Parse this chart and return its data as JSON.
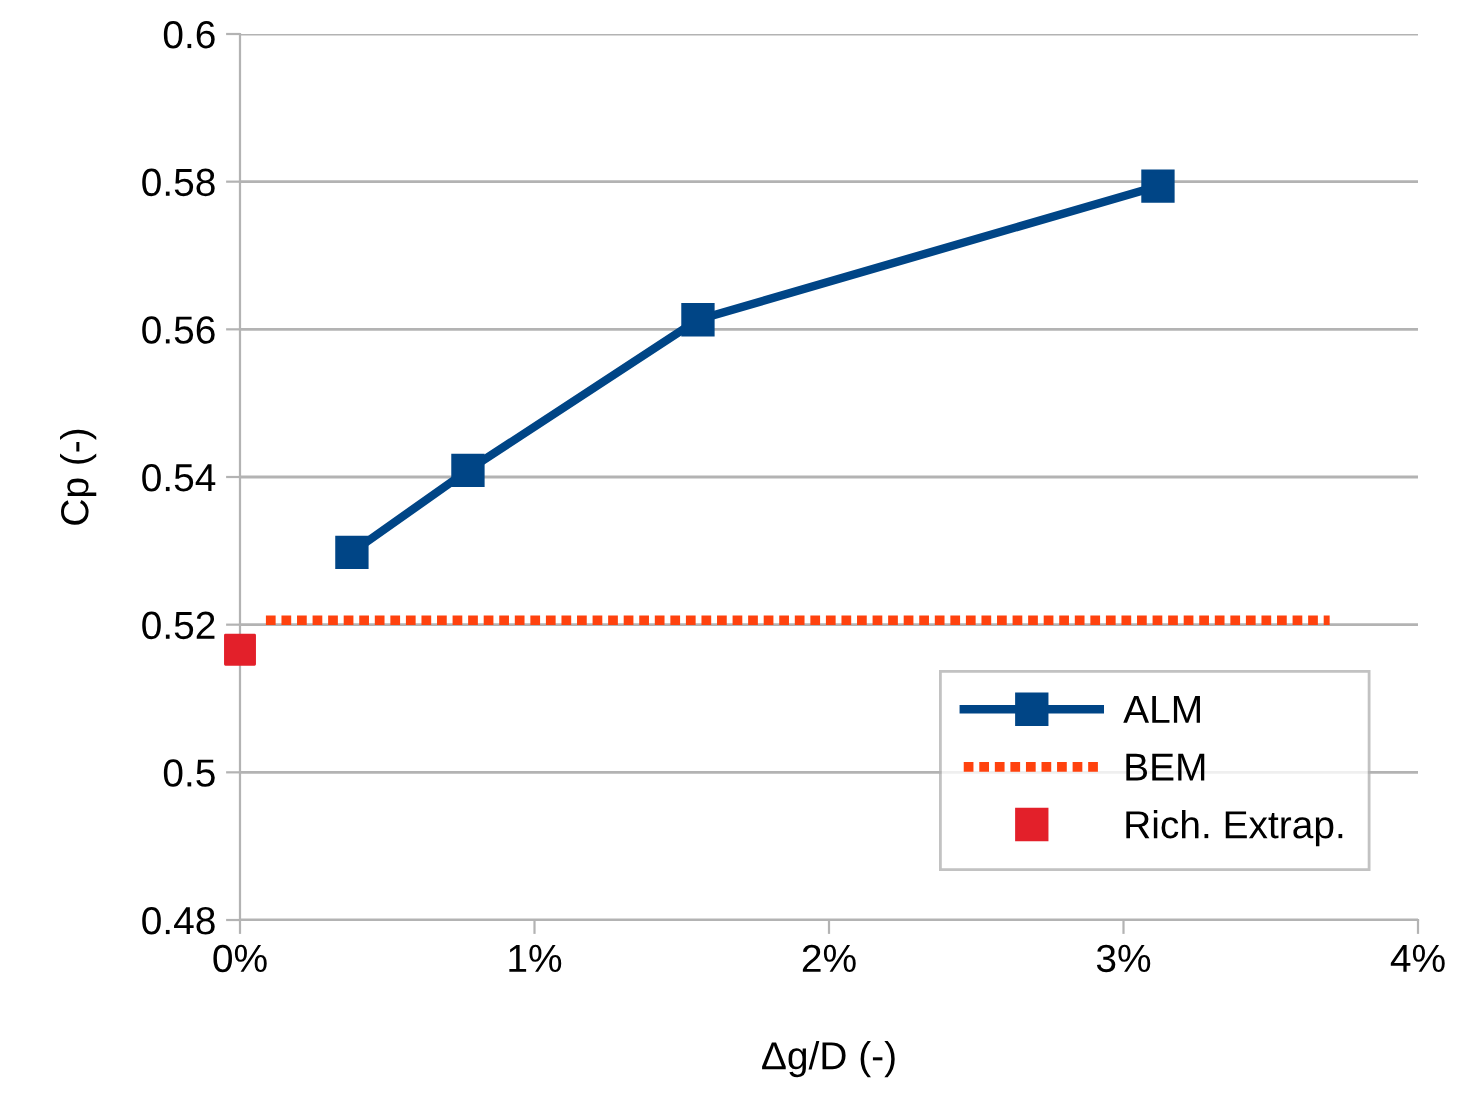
{
  "chart_data": {
    "type": "line",
    "xlabel": "Δg/D (-)",
    "ylabel": "Cp (-)",
    "xlim": [
      0,
      4
    ],
    "xticks": [
      {
        "value": 0,
        "label": "0%"
      },
      {
        "value": 1,
        "label": "1%"
      },
      {
        "value": 2,
        "label": "2%"
      },
      {
        "value": 3,
        "label": "3%"
      },
      {
        "value": 4,
        "label": "4%"
      }
    ],
    "ylim": [
      0.48,
      0.6
    ],
    "yticks": [
      {
        "value": 0.48,
        "label": "0.48"
      },
      {
        "value": 0.5,
        "label": "0.5"
      },
      {
        "value": 0.52,
        "label": "0.52"
      },
      {
        "value": 0.54,
        "label": "0.54"
      },
      {
        "value": 0.56,
        "label": "0.56"
      },
      {
        "value": 0.58,
        "label": "0.58"
      },
      {
        "value": 0.6,
        "label": "0.6"
      }
    ],
    "grid": "y",
    "legend": "bottom right",
    "series": [
      {
        "name": "ALM",
        "color": "#004586",
        "marker": "square",
        "line_style": "solid",
        "x": [
          0.38,
          0.774,
          1.555,
          3.117
        ],
        "values": [
          0.5298,
          0.5409,
          0.5613,
          0.5794
        ]
      },
      {
        "name": "BEM",
        "color": "#ff420e",
        "marker": "none",
        "line_style": "dashed",
        "x": [
          0.088,
          3.7
        ],
        "values": [
          0.5206,
          0.5206
        ]
      },
      {
        "name": "Rich. Extrap.",
        "type": "scatter",
        "color": "#e3202a",
        "marker": "square",
        "x": [
          0
        ],
        "values": [
          0.5166
        ]
      }
    ]
  }
}
